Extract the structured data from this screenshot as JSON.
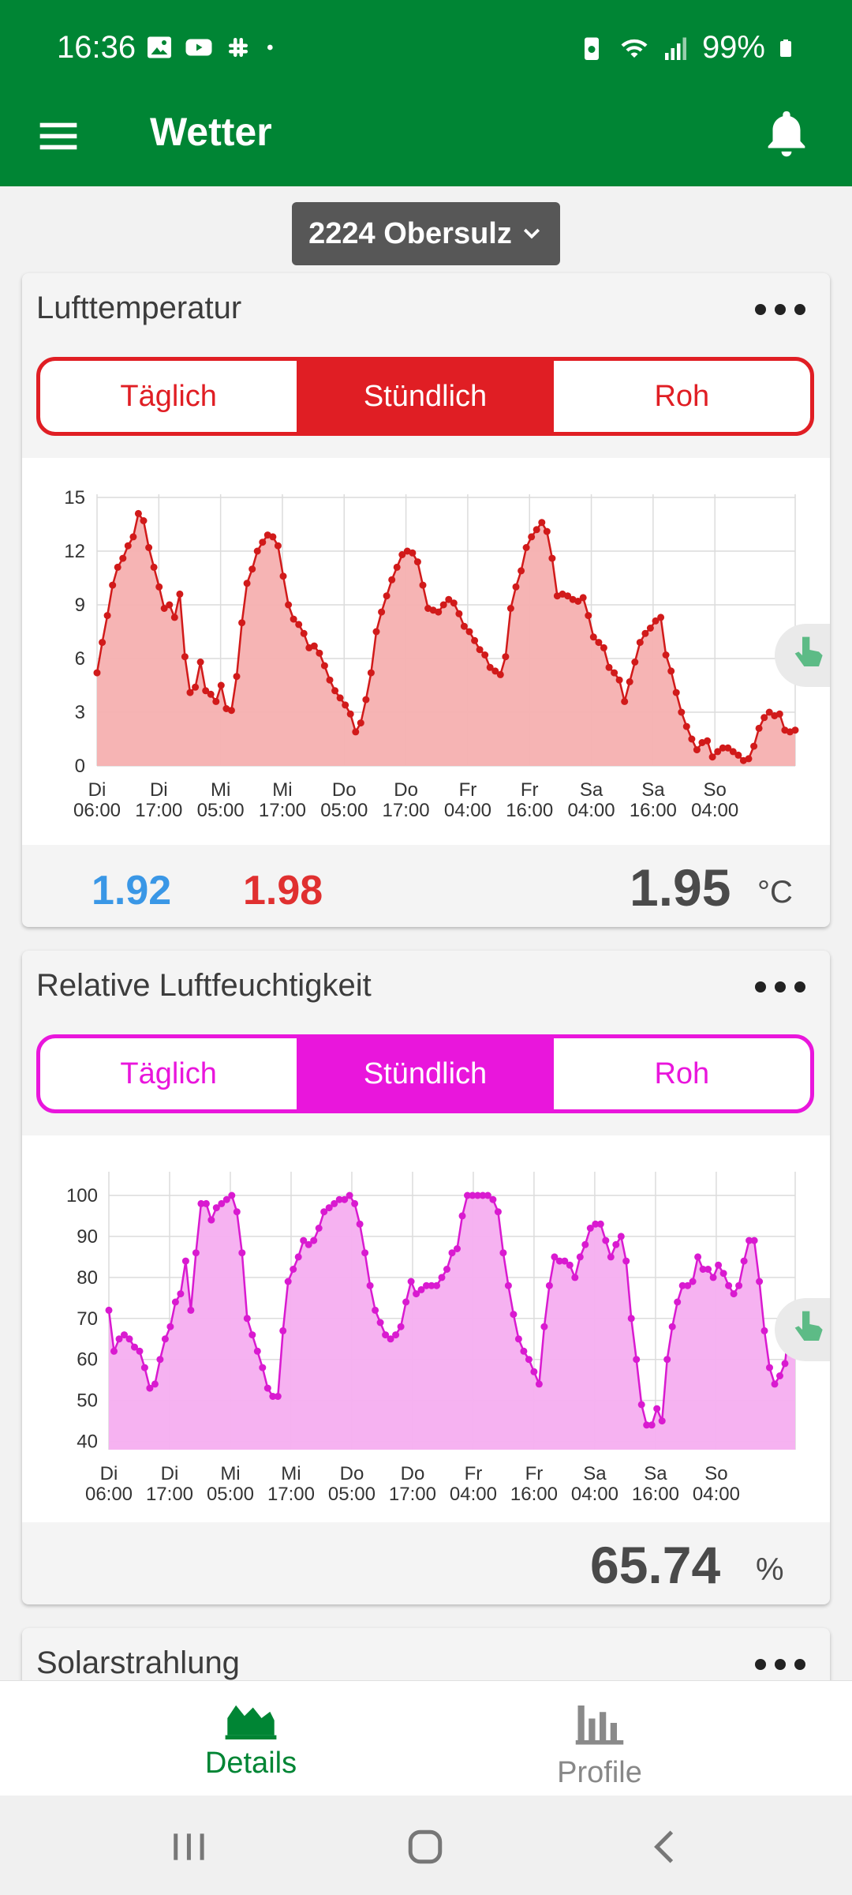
{
  "status": {
    "time": "16:36",
    "battery": "99%"
  },
  "app": {
    "title": "Wetter"
  },
  "station": {
    "label": "2224 Obersulz"
  },
  "cards": {
    "temp": {
      "title": "Lufttemperatur",
      "tabs": [
        "Täglich",
        "Stündlich",
        "Roh"
      ],
      "selected_tab": "Stündlich",
      "min": "1.92",
      "max": "1.98",
      "current": "1.95",
      "unit": "°C",
      "accent": "#e01e24"
    },
    "humidity": {
      "title": "Relative Luftfeuchtigkeit",
      "tabs": [
        "Täglich",
        "Stündlich",
        "Roh"
      ],
      "selected_tab": "Stündlich",
      "current": "65.74",
      "unit": "%",
      "accent": "#e916dc"
    },
    "solar": {
      "title": "Solarstrahlung"
    }
  },
  "chart_data": [
    {
      "type": "area",
      "series_color": "#d11a1a",
      "fill_color": "#f5b0b0",
      "x_tick_labels": [
        [
          "Di",
          "06:00"
        ],
        [
          "Di",
          "17:00"
        ],
        [
          "Mi",
          "05:00"
        ],
        [
          "Mi",
          "17:00"
        ],
        [
          "Do",
          "05:00"
        ],
        [
          "Do",
          "17:00"
        ],
        [
          "Fr",
          "04:00"
        ],
        [
          "Fr",
          "16:00"
        ],
        [
          "Sa",
          "04:00"
        ],
        [
          "Sa",
          "16:00"
        ],
        [
          "So",
          "04:00"
        ]
      ],
      "y_ticks": [
        "15",
        "12",
        "9",
        "6",
        "3",
        "0"
      ],
      "ylim": [
        0,
        15
      ],
      "values": [
        5.2,
        6.9,
        8.4,
        10.1,
        11.1,
        11.6,
        12.3,
        12.8,
        14.1,
        13.7,
        12.2,
        11.1,
        10.0,
        8.8,
        9.0,
        8.3,
        9.6,
        6.1,
        4.1,
        4.4,
        5.8,
        4.2,
        4.0,
        3.6,
        4.5,
        3.2,
        3.1,
        5.0,
        8.0,
        10.2,
        11.0,
        12.0,
        12.5,
        12.9,
        12.8,
        12.3,
        10.6,
        9.0,
        8.2,
        7.9,
        7.4,
        6.6,
        6.7,
        6.3,
        5.6,
        4.8,
        4.2,
        3.8,
        3.4,
        2.9,
        1.9,
        2.4,
        3.7,
        5.2,
        7.5,
        8.6,
        9.5,
        10.4,
        11.1,
        11.8,
        12.0,
        11.9,
        11.4,
        10.1,
        8.8,
        8.7,
        8.6,
        9.0,
        9.3,
        9.1,
        8.5,
        7.8,
        7.5,
        7.0,
        6.5,
        6.2,
        5.5,
        5.3,
        5.1,
        6.1,
        8.8,
        10.0,
        10.9,
        12.2,
        12.8,
        13.2,
        13.6,
        13.1,
        11.6,
        9.5,
        9.6,
        9.5,
        9.3,
        9.2,
        9.4,
        8.4,
        7.2,
        6.9,
        6.6,
        5.5,
        5.2,
        4.8,
        3.6,
        4.7,
        5.8,
        6.9,
        7.4,
        7.7,
        8.1,
        8.3,
        6.2,
        5.3,
        4.1,
        3.0,
        2.2,
        1.5,
        0.9,
        1.3,
        1.4,
        0.5,
        0.8,
        1.0,
        1.0,
        0.8,
        0.6,
        0.3,
        0.4,
        1.1,
        2.1,
        2.7,
        3.0,
        2.8,
        2.9,
        2.0,
        1.9,
        2.0
      ]
    },
    {
      "type": "area",
      "series_color": "#d91ad0",
      "fill_color": "#f6aef0",
      "x_tick_labels": [
        [
          "Di",
          "06:00"
        ],
        [
          "Di",
          "17:00"
        ],
        [
          "Mi",
          "05:00"
        ],
        [
          "Mi",
          "17:00"
        ],
        [
          "Do",
          "05:00"
        ],
        [
          "Do",
          "17:00"
        ],
        [
          "Fr",
          "04:00"
        ],
        [
          "Fr",
          "16:00"
        ],
        [
          "Sa",
          "04:00"
        ],
        [
          "Sa",
          "16:00"
        ],
        [
          "So",
          "04:00"
        ]
      ],
      "y_ticks": [
        "100",
        "90",
        "80",
        "70",
        "60",
        "50",
        "40"
      ],
      "ylim": [
        38,
        105
      ],
      "values": [
        72,
        62,
        65,
        66,
        65,
        63,
        62,
        58,
        53,
        54,
        60,
        65,
        68,
        74,
        76,
        84,
        72,
        86,
        98,
        98,
        94,
        97,
        98,
        99,
        100,
        96,
        86,
        70,
        66,
        62,
        58,
        53,
        51,
        51,
        67,
        79,
        82,
        85,
        89,
        88,
        89,
        92,
        96,
        97,
        98,
        99,
        99,
        100,
        98,
        93,
        86,
        78,
        72,
        69,
        66,
        65,
        66,
        68,
        74,
        79,
        76,
        77,
        78,
        78,
        78,
        80,
        82,
        86,
        87,
        95,
        100,
        100,
        100,
        100,
        100,
        99,
        96,
        86,
        78,
        71,
        65,
        62,
        60,
        57,
        54,
        68,
        78,
        85,
        84,
        84,
        83,
        80,
        85,
        88,
        92,
        93,
        93,
        89,
        85,
        88,
        90,
        84,
        70,
        60,
        49,
        44,
        44,
        48,
        45,
        60,
        68,
        74,
        78,
        78,
        79,
        85,
        82,
        82,
        80,
        83,
        81,
        78,
        76,
        78,
        84,
        89,
        89,
        79,
        67,
        58,
        54,
        56,
        59,
        70,
        68
      ]
    }
  ],
  "nav": {
    "details": "Details",
    "profile": "Profile"
  }
}
